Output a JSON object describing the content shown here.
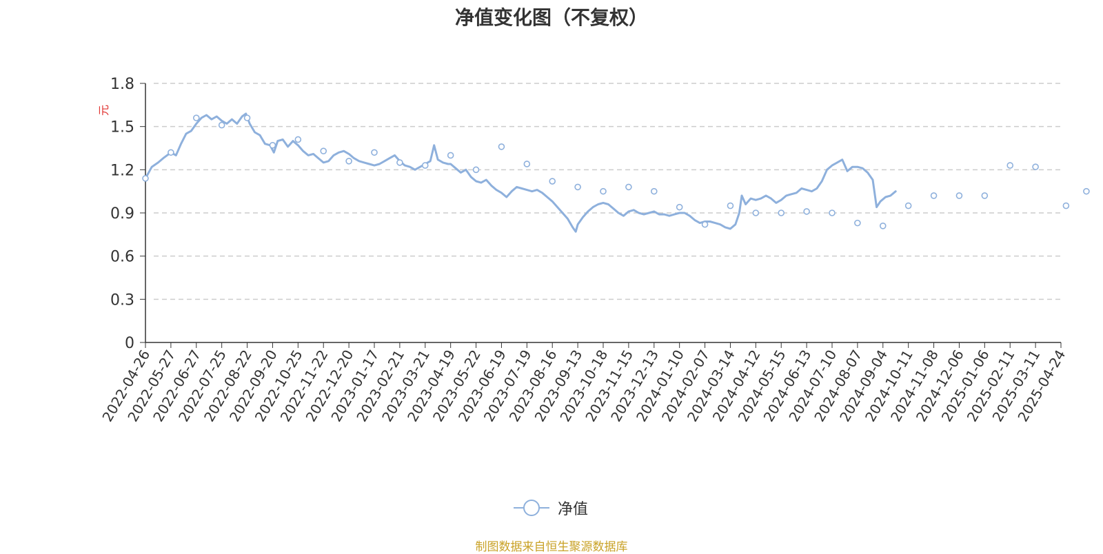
{
  "title": "净值变化图（不复权）",
  "footer": "制图数据来自恒生聚源数据库",
  "legend": {
    "label": "净值",
    "color": "#8eb0dc"
  },
  "chart_data": {
    "type": "line",
    "title": "净值变化图（不复权）",
    "ylabel": "元",
    "ylim": [
      0,
      1.8
    ],
    "yticks": [
      0,
      0.3,
      0.6,
      0.9,
      1.2,
      1.5,
      1.8
    ],
    "grid": true,
    "legend_position": "bottom",
    "x_categories": [
      "2022-04-26",
      "2022-05-27",
      "2022-06-27",
      "2022-07-25",
      "2022-08-22",
      "2022-09-20",
      "2022-10-25",
      "2022-11-22",
      "2022-12-20",
      "2023-01-17",
      "2023-02-21",
      "2023-03-21",
      "2023-04-19",
      "2023-05-22",
      "2023-06-19",
      "2023-07-19",
      "2023-08-16",
      "2023-09-13",
      "2023-10-18",
      "2023-11-15",
      "2023-12-13",
      "2024-01-10",
      "2024-02-07",
      "2024-03-14",
      "2024-04-12",
      "2024-05-15",
      "2024-06-13",
      "2024-07-10",
      "2024-08-07",
      "2024-09-04",
      "2024-10-11",
      "2024-11-08",
      "2024-12-06",
      "2025-01-06",
      "2025-02-11",
      "2025-03-11",
      "2025-04-24"
    ],
    "series": [
      {
        "name": "净值",
        "color": "#8eb0dc",
        "values": [
          [
            0.0,
            1.14
          ],
          [
            0.25,
            1.22
          ],
          [
            0.5,
            1.25
          ],
          [
            0.7,
            1.28
          ],
          [
            1.0,
            1.32
          ],
          [
            1.2,
            1.3
          ],
          [
            1.4,
            1.38
          ],
          [
            1.6,
            1.45
          ],
          [
            1.8,
            1.47
          ],
          [
            2.0,
            1.52
          ],
          [
            2.2,
            1.56
          ],
          [
            2.4,
            1.58
          ],
          [
            2.6,
            1.55
          ],
          [
            2.8,
            1.57
          ],
          [
            3.0,
            1.54
          ],
          [
            3.2,
            1.52
          ],
          [
            3.4,
            1.55
          ],
          [
            3.6,
            1.52
          ],
          [
            3.8,
            1.57
          ],
          [
            3.95,
            1.59
          ],
          [
            4.1,
            1.52
          ],
          [
            4.3,
            1.46
          ],
          [
            4.5,
            1.44
          ],
          [
            4.7,
            1.38
          ],
          [
            4.9,
            1.37
          ],
          [
            5.05,
            1.32
          ],
          [
            5.2,
            1.4
          ],
          [
            5.4,
            1.41
          ],
          [
            5.6,
            1.36
          ],
          [
            5.8,
            1.4
          ],
          [
            6.0,
            1.37
          ],
          [
            6.2,
            1.33
          ],
          [
            6.4,
            1.3
          ],
          [
            6.6,
            1.31
          ],
          [
            6.8,
            1.28
          ],
          [
            7.0,
            1.25
          ],
          [
            7.2,
            1.26
          ],
          [
            7.4,
            1.3
          ],
          [
            7.6,
            1.32
          ],
          [
            7.8,
            1.33
          ],
          [
            8.0,
            1.31
          ],
          [
            8.2,
            1.28
          ],
          [
            8.4,
            1.26
          ],
          [
            8.6,
            1.25
          ],
          [
            8.8,
            1.24
          ],
          [
            9.0,
            1.23
          ],
          [
            9.2,
            1.24
          ],
          [
            9.4,
            1.26
          ],
          [
            9.6,
            1.28
          ],
          [
            9.8,
            1.3
          ],
          [
            10.0,
            1.26
          ],
          [
            10.2,
            1.23
          ],
          [
            10.4,
            1.22
          ],
          [
            10.6,
            1.2
          ],
          [
            10.8,
            1.22
          ],
          [
            11.0,
            1.24
          ],
          [
            11.2,
            1.26
          ],
          [
            11.35,
            1.37
          ],
          [
            11.5,
            1.27
          ],
          [
            11.7,
            1.25
          ],
          [
            11.9,
            1.24
          ],
          [
            12.0,
            1.24
          ],
          [
            12.2,
            1.21
          ],
          [
            12.4,
            1.18
          ],
          [
            12.6,
            1.2
          ],
          [
            12.8,
            1.15
          ],
          [
            13.0,
            1.12
          ],
          [
            13.2,
            1.11
          ],
          [
            13.4,
            1.13
          ],
          [
            13.6,
            1.09
          ],
          [
            13.8,
            1.06
          ],
          [
            14.0,
            1.04
          ],
          [
            14.2,
            1.01
          ],
          [
            14.4,
            1.05
          ],
          [
            14.6,
            1.08
          ],
          [
            14.8,
            1.07
          ],
          [
            15.0,
            1.06
          ],
          [
            15.2,
            1.05
          ],
          [
            15.4,
            1.06
          ],
          [
            15.6,
            1.04
          ],
          [
            15.8,
            1.01
          ],
          [
            16.0,
            0.98
          ],
          [
            16.2,
            0.94
          ],
          [
            16.4,
            0.9
          ],
          [
            16.6,
            0.86
          ],
          [
            16.8,
            0.8
          ],
          [
            16.92,
            0.77
          ],
          [
            17.0,
            0.82
          ],
          [
            17.2,
            0.87
          ],
          [
            17.4,
            0.91
          ],
          [
            17.6,
            0.94
          ],
          [
            17.8,
            0.96
          ],
          [
            18.0,
            0.97
          ],
          [
            18.2,
            0.96
          ],
          [
            18.4,
            0.93
          ],
          [
            18.6,
            0.9
          ],
          [
            18.8,
            0.88
          ],
          [
            19.0,
            0.91
          ],
          [
            19.2,
            0.92
          ],
          [
            19.4,
            0.9
          ],
          [
            19.6,
            0.89
          ],
          [
            19.8,
            0.9
          ],
          [
            20.0,
            0.91
          ],
          [
            20.2,
            0.89
          ],
          [
            20.4,
            0.89
          ],
          [
            20.6,
            0.88
          ],
          [
            20.8,
            0.89
          ],
          [
            21.0,
            0.9
          ],
          [
            21.2,
            0.9
          ],
          [
            21.4,
            0.88
          ],
          [
            21.6,
            0.85
          ],
          [
            21.8,
            0.83
          ],
          [
            22.0,
            0.84
          ],
          [
            22.2,
            0.84
          ],
          [
            22.4,
            0.83
          ],
          [
            22.6,
            0.82
          ],
          [
            22.8,
            0.8
          ],
          [
            23.0,
            0.79
          ],
          [
            23.2,
            0.82
          ],
          [
            23.35,
            0.9
          ],
          [
            23.45,
            1.02
          ],
          [
            23.6,
            0.96
          ],
          [
            23.8,
            1.0
          ],
          [
            24.0,
            0.99
          ],
          [
            24.2,
            1.0
          ],
          [
            24.4,
            1.02
          ],
          [
            24.6,
            1.0
          ],
          [
            24.8,
            0.97
          ],
          [
            25.0,
            0.99
          ],
          [
            25.2,
            1.02
          ],
          [
            25.4,
            1.03
          ],
          [
            25.6,
            1.04
          ],
          [
            25.8,
            1.07
          ],
          [
            26.0,
            1.06
          ],
          [
            26.2,
            1.05
          ],
          [
            26.4,
            1.07
          ],
          [
            26.6,
            1.12
          ],
          [
            26.8,
            1.2
          ],
          [
            27.0,
            1.23
          ],
          [
            27.2,
            1.25
          ],
          [
            27.4,
            1.27
          ],
          [
            27.6,
            1.19
          ],
          [
            27.8,
            1.22
          ],
          [
            28.0,
            1.22
          ],
          [
            28.2,
            1.21
          ],
          [
            28.4,
            1.18
          ],
          [
            28.6,
            1.13
          ],
          [
            28.75,
            0.94
          ],
          [
            28.9,
            0.98
          ],
          [
            29.1,
            1.01
          ],
          [
            29.3,
            1.02
          ],
          [
            29.5,
            1.05
          ]
        ],
        "markers": [
          [
            0.0,
            1.14
          ],
          [
            1.0,
            1.32
          ],
          [
            2.0,
            1.56
          ],
          [
            3.0,
            1.51
          ],
          [
            4.0,
            1.56
          ],
          [
            5.0,
            1.37
          ],
          [
            6.0,
            1.41
          ],
          [
            7.0,
            1.33
          ],
          [
            8.0,
            1.26
          ],
          [
            9.0,
            1.32
          ],
          [
            10.0,
            1.25
          ],
          [
            11.0,
            1.23
          ],
          [
            12.0,
            1.3
          ],
          [
            13.0,
            1.2
          ],
          [
            14.0,
            1.36
          ],
          [
            15.0,
            1.24
          ],
          [
            16.0,
            1.12
          ],
          [
            17.0,
            1.08
          ],
          [
            18.0,
            1.05
          ],
          [
            19.0,
            1.08
          ],
          [
            20.0,
            1.05
          ],
          [
            21.0,
            0.94
          ],
          [
            22.0,
            0.82
          ],
          [
            23.0,
            0.95
          ],
          [
            24.0,
            0.9
          ],
          [
            25.0,
            0.9
          ],
          [
            26.0,
            0.91
          ],
          [
            27.0,
            0.9
          ],
          [
            28.0,
            0.83
          ],
          [
            29.0,
            0.81
          ],
          [
            30.0,
            0.95
          ],
          [
            31.0,
            1.02
          ],
          [
            32.0,
            1.02
          ],
          [
            33.0,
            1.02
          ],
          [
            34.0,
            1.23
          ],
          [
            35.0,
            1.22
          ],
          [
            36.2,
            0.95
          ],
          [
            37.0,
            1.05
          ]
        ]
      }
    ]
  }
}
